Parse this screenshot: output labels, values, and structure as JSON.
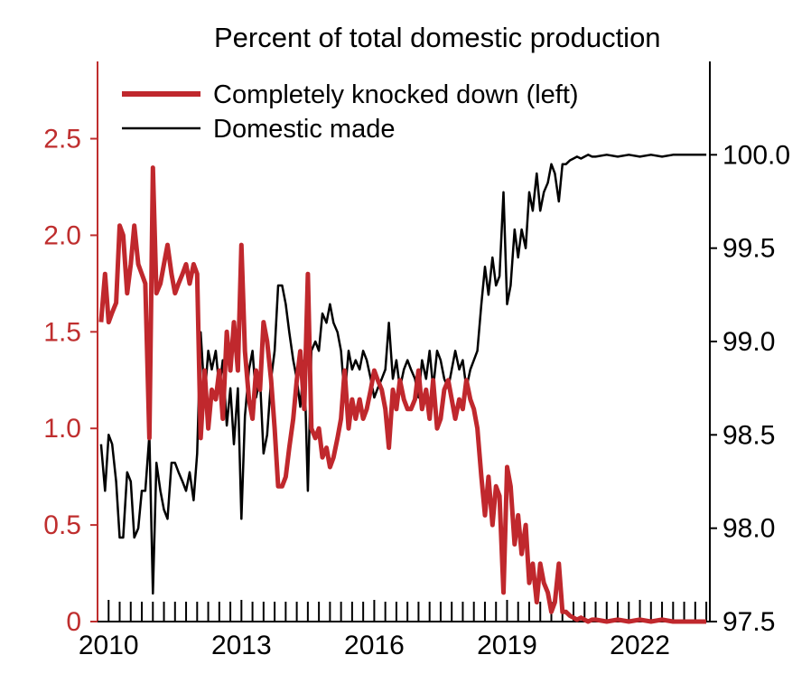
{
  "chart_data": {
    "type": "line",
    "title": "Percent of total domestic production",
    "colors": {
      "left_axis": "#bf2e2e",
      "ckd_line": "#c0282d",
      "domestic_line": "#000000",
      "right_axis": "#000000"
    },
    "x_axis": {
      "range": [
        2009.75,
        2023.58
      ],
      "tick_labels": [
        "2010",
        "2013",
        "2016",
        "2019",
        "2022"
      ],
      "tick_values": [
        2010,
        2013,
        2016,
        2019,
        2022
      ],
      "minor_tick_step_years": 0.25
    },
    "left_axis": {
      "range": [
        0,
        2.9
      ],
      "tick_values": [
        0,
        0.5,
        1.0,
        1.5,
        2.0,
        2.5
      ],
      "tick_labels": [
        "0",
        "0.5",
        "1.0",
        "1.5",
        "2.0",
        "2.5"
      ]
    },
    "right_axis": {
      "range": [
        97.5,
        100.5
      ],
      "tick_values": [
        97.5,
        98.0,
        98.5,
        99.0,
        99.5,
        100.0
      ],
      "tick_labels": [
        "97.5",
        "98.0",
        "98.5",
        "99.0",
        "99.5",
        "100.0"
      ]
    },
    "series": [
      {
        "name": "Completely knocked down (left)",
        "axis": "left",
        "x": [
          2009.83,
          2009.92,
          2010.0,
          2010.08,
          2010.17,
          2010.25,
          2010.33,
          2010.42,
          2010.5,
          2010.58,
          2010.67,
          2010.75,
          2010.83,
          2010.92,
          2011.0,
          2011.08,
          2011.17,
          2011.25,
          2011.33,
          2011.42,
          2011.5,
          2011.58,
          2011.67,
          2011.75,
          2011.83,
          2011.92,
          2012.0,
          2012.08,
          2012.17,
          2012.25,
          2012.33,
          2012.42,
          2012.5,
          2012.58,
          2012.67,
          2012.75,
          2012.83,
          2012.92,
          2013.0,
          2013.08,
          2013.17,
          2013.25,
          2013.33,
          2013.42,
          2013.5,
          2013.58,
          2013.67,
          2013.75,
          2013.83,
          2013.92,
          2014.0,
          2014.08,
          2014.17,
          2014.25,
          2014.33,
          2014.42,
          2014.5,
          2014.58,
          2014.67,
          2014.75,
          2014.83,
          2014.92,
          2015.0,
          2015.08,
          2015.17,
          2015.25,
          2015.33,
          2015.42,
          2015.5,
          2015.58,
          2015.67,
          2015.75,
          2015.83,
          2015.92,
          2016.0,
          2016.08,
          2016.17,
          2016.25,
          2016.33,
          2016.42,
          2016.5,
          2016.58,
          2016.67,
          2016.75,
          2016.83,
          2016.92,
          2017.0,
          2017.08,
          2017.17,
          2017.25,
          2017.33,
          2017.42,
          2017.5,
          2017.58,
          2017.67,
          2017.75,
          2017.83,
          2017.92,
          2018.0,
          2018.08,
          2018.17,
          2018.25,
          2018.33,
          2018.42,
          2018.5,
          2018.58,
          2018.67,
          2018.75,
          2018.83,
          2018.92,
          2019.0,
          2019.08,
          2019.17,
          2019.25,
          2019.33,
          2019.42,
          2019.5,
          2019.58,
          2019.67,
          2019.75,
          2019.83,
          2019.92,
          2020.0,
          2020.08,
          2020.17,
          2020.25,
          2020.33,
          2020.42,
          2020.5,
          2020.58,
          2020.67,
          2020.75,
          2020.83,
          2020.92,
          2021.0,
          2021.25,
          2021.5,
          2021.75,
          2022.0,
          2022.25,
          2022.5,
          2022.75,
          2023.0,
          2023.25,
          2023.5
        ],
        "values": [
          1.55,
          1.8,
          1.55,
          1.6,
          1.65,
          2.05,
          2.0,
          1.7,
          1.85,
          2.05,
          1.85,
          1.8,
          1.75,
          0.95,
          2.35,
          1.7,
          1.75,
          1.85,
          1.95,
          1.8,
          1.7,
          1.75,
          1.8,
          1.85,
          1.75,
          1.85,
          1.8,
          0.95,
          1.3,
          1.0,
          1.2,
          1.15,
          1.3,
          1.05,
          1.5,
          1.3,
          1.55,
          1.3,
          1.95,
          1.4,
          1.15,
          1.05,
          1.3,
          1.2,
          1.55,
          1.45,
          1.25,
          1.0,
          0.7,
          0.7,
          0.75,
          0.9,
          1.05,
          1.25,
          1.4,
          1.1,
          1.8,
          1.0,
          0.95,
          1.0,
          0.85,
          0.9,
          0.8,
          0.85,
          0.95,
          1.05,
          1.3,
          1.0,
          1.15,
          1.05,
          1.15,
          1.05,
          1.1,
          1.2,
          1.3,
          1.25,
          1.2,
          1.1,
          0.9,
          1.2,
          1.1,
          1.25,
          1.15,
          1.1,
          1.1,
          1.15,
          1.3,
          1.1,
          1.2,
          1.05,
          1.25,
          1.0,
          1.05,
          1.2,
          1.25,
          1.15,
          1.05,
          1.15,
          1.1,
          1.25,
          1.15,
          1.1,
          1.0,
          0.75,
          0.55,
          0.75,
          0.5,
          0.7,
          0.65,
          0.15,
          0.8,
          0.7,
          0.4,
          0.55,
          0.35,
          0.5,
          0.2,
          0.3,
          0.1,
          0.3,
          0.2,
          0.15,
          0.05,
          0.1,
          0.3,
          0.05,
          0.05,
          0.03,
          0.02,
          0.01,
          0.02,
          0.01,
          0.0,
          0.01,
          0.01,
          0.0,
          0.01,
          0.0,
          0.01,
          0.0,
          0.01,
          0.0,
          0.0,
          0.0,
          0.0
        ]
      },
      {
        "name": "Domestic made",
        "axis": "right",
        "x": [
          2009.83,
          2009.92,
          2010.0,
          2010.08,
          2010.17,
          2010.25,
          2010.33,
          2010.42,
          2010.5,
          2010.58,
          2010.67,
          2010.75,
          2010.83,
          2010.92,
          2011.0,
          2011.08,
          2011.17,
          2011.25,
          2011.33,
          2011.42,
          2011.5,
          2011.58,
          2011.67,
          2011.75,
          2011.83,
          2011.92,
          2012.0,
          2012.08,
          2012.17,
          2012.25,
          2012.33,
          2012.42,
          2012.5,
          2012.58,
          2012.67,
          2012.75,
          2012.83,
          2012.92,
          2013.0,
          2013.08,
          2013.17,
          2013.25,
          2013.33,
          2013.42,
          2013.5,
          2013.58,
          2013.67,
          2013.75,
          2013.83,
          2013.92,
          2014.0,
          2014.08,
          2014.17,
          2014.25,
          2014.33,
          2014.42,
          2014.5,
          2014.58,
          2014.67,
          2014.75,
          2014.83,
          2014.92,
          2015.0,
          2015.08,
          2015.17,
          2015.25,
          2015.33,
          2015.42,
          2015.5,
          2015.58,
          2015.67,
          2015.75,
          2015.83,
          2015.92,
          2016.0,
          2016.08,
          2016.17,
          2016.25,
          2016.33,
          2016.42,
          2016.5,
          2016.58,
          2016.67,
          2016.75,
          2016.83,
          2016.92,
          2017.0,
          2017.08,
          2017.17,
          2017.25,
          2017.33,
          2017.42,
          2017.5,
          2017.58,
          2017.67,
          2017.75,
          2017.83,
          2017.92,
          2018.0,
          2018.08,
          2018.17,
          2018.25,
          2018.33,
          2018.42,
          2018.5,
          2018.58,
          2018.67,
          2018.75,
          2018.83,
          2018.92,
          2019.0,
          2019.08,
          2019.17,
          2019.25,
          2019.33,
          2019.42,
          2019.5,
          2019.58,
          2019.67,
          2019.75,
          2019.83,
          2019.92,
          2020.0,
          2020.08,
          2020.17,
          2020.25,
          2020.33,
          2020.42,
          2020.5,
          2020.58,
          2020.67,
          2020.75,
          2020.83,
          2020.92,
          2021.0,
          2021.25,
          2021.5,
          2021.75,
          2022.0,
          2022.25,
          2022.5,
          2022.75,
          2023.0,
          2023.25,
          2023.5
        ],
        "values": [
          98.45,
          98.2,
          98.5,
          98.45,
          98.25,
          97.95,
          97.95,
          98.3,
          98.25,
          97.95,
          98.0,
          98.2,
          98.2,
          98.5,
          97.65,
          98.35,
          98.2,
          98.1,
          98.05,
          98.35,
          98.35,
          98.3,
          98.25,
          98.2,
          98.3,
          98.15,
          98.4,
          99.05,
          98.7,
          98.95,
          98.85,
          98.95,
          98.75,
          98.9,
          98.55,
          98.75,
          98.45,
          98.75,
          98.05,
          98.6,
          98.85,
          98.95,
          98.7,
          98.8,
          98.4,
          98.5,
          98.8,
          98.95,
          99.3,
          99.3,
          99.2,
          99.05,
          98.9,
          98.8,
          98.65,
          98.9,
          98.2,
          98.95,
          99.0,
          98.95,
          99.15,
          99.1,
          99.2,
          99.1,
          99.05,
          98.95,
          98.7,
          98.95,
          98.85,
          98.9,
          98.85,
          98.95,
          98.9,
          98.8,
          98.7,
          98.75,
          98.8,
          98.85,
          99.1,
          98.8,
          98.9,
          98.75,
          98.85,
          98.9,
          98.85,
          98.8,
          98.7,
          98.9,
          98.8,
          98.95,
          98.75,
          98.95,
          98.9,
          98.8,
          98.75,
          98.85,
          98.95,
          98.85,
          98.9,
          98.75,
          98.85,
          98.9,
          98.95,
          99.2,
          99.4,
          99.25,
          99.45,
          99.3,
          99.35,
          99.8,
          99.2,
          99.3,
          99.6,
          99.45,
          99.6,
          99.5,
          99.8,
          99.7,
          99.9,
          99.7,
          99.8,
          99.85,
          99.95,
          99.9,
          99.75,
          99.95,
          99.95,
          99.97,
          99.98,
          99.99,
          99.98,
          99.99,
          100.0,
          99.99,
          99.99,
          100.0,
          99.99,
          100.0,
          99.99,
          100.0,
          99.99,
          100.0,
          100.0,
          100.0,
          100.0
        ]
      }
    ],
    "legend": {
      "position": "top-left",
      "entries": [
        "Completely knocked down (left)",
        "Domestic made"
      ]
    }
  }
}
